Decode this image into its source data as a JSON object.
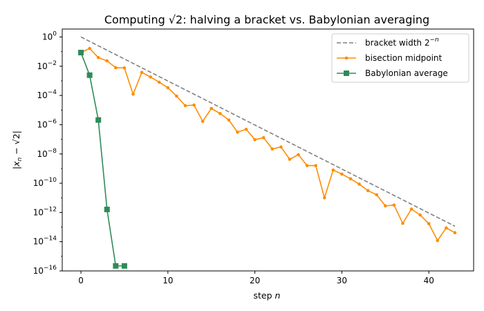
{
  "chart_data": {
    "type": "line",
    "title": "Computing √2: halving a bracket vs. Babylonian averaging",
    "xlabel": "step n",
    "ylabel": "|x_n − √2|",
    "xlim": [
      -2.15,
      45.15
    ],
    "ylim": [
      1e-16,
      3.5
    ],
    "yscale": "log",
    "grid": false,
    "legend_position": "top-right",
    "x_ticks": [
      "0",
      "10",
      "20",
      "30",
      "40"
    ],
    "y_ticks": [
      {
        "base": "10",
        "exp": "0"
      },
      {
        "base": "10",
        "exp": "−2"
      },
      {
        "base": "10",
        "exp": "−4"
      },
      {
        "base": "10",
        "exp": "−6"
      },
      {
        "base": "10",
        "exp": "−8"
      },
      {
        "base": "10",
        "exp": "−10"
      },
      {
        "base": "10",
        "exp": "−12"
      },
      {
        "base": "10",
        "exp": "−14"
      },
      {
        "base": "10",
        "exp": "−16"
      }
    ],
    "series": [
      {
        "name": "bracket width 2^−n",
        "color": "#808080",
        "style": "dashed",
        "x": [
          0,
          43
        ],
        "y": [
          1,
          1.137e-13
        ]
      },
      {
        "name": "bisection midpoint",
        "color": "#ff8c00",
        "style": "solid-dot",
        "x": [
          0,
          1,
          2,
          3,
          4,
          5,
          6,
          7,
          8,
          9,
          10,
          11,
          12,
          13,
          14,
          15,
          16,
          17,
          18,
          19,
          20,
          21,
          22,
          23,
          24,
          25,
          26,
          27,
          28,
          29,
          30,
          31,
          32,
          33,
          34,
          35,
          36,
          37,
          38,
          39,
          40,
          41,
          42,
          43
        ],
        "y": [
          0.0858,
          0.164,
          0.0392,
          0.0233,
          0.00793,
          0.00769,
          0.000122,
          0.00378,
          0.00183,
          0.000803,
          0.000339,
          9.1e-05,
          2e-05,
          2.2e-05,
          1.7e-06,
          1.3e-05,
          5.8e-06,
          2.1e-06,
          3.1e-07,
          4.9e-07,
          9.5e-08,
          1.3e-07,
          2.2e-08,
          3e-08,
          4.3e-09,
          8.9e-09,
          1.6e-09,
          1.6e-09,
          1e-11,
          7.9e-10,
          4.2e-10,
          2e-10,
          8.6e-11,
          3.1e-11,
          1.6e-11,
          2.8e-12,
          3.2e-12,
          1.8e-13,
          1.7e-12,
          6.7e-13,
          1.7e-13,
          1.2e-14,
          8.7e-14,
          4.1e-14
        ]
      },
      {
        "name": "Babylonian average",
        "color": "#2e8b57",
        "style": "solid-square",
        "x": [
          0,
          1,
          2,
          3,
          4,
          5
        ],
        "y": [
          0.0858,
          0.00245,
          2.1e-06,
          1.6e-12,
          2.2e-16,
          2.2e-16
        ]
      }
    ],
    "legend": [
      {
        "label": "bracket width 2",
        "sup": "−n"
      },
      {
        "label": "bisection midpoint",
        "sup": ""
      },
      {
        "label": "Babylonian average",
        "sup": ""
      }
    ]
  }
}
